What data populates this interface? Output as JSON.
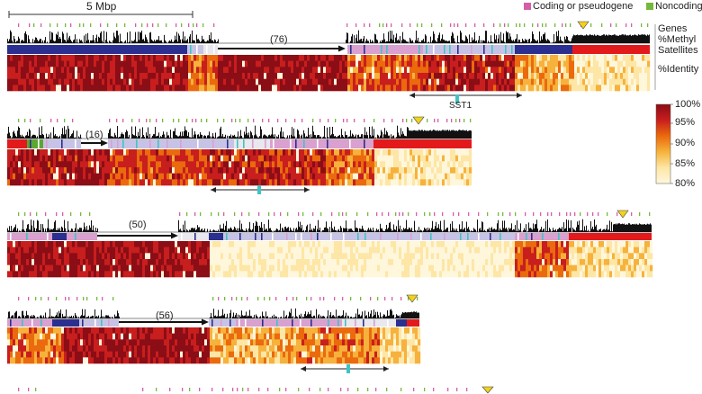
{
  "scale_bar": {
    "label": "5 Mbp"
  },
  "legend": [
    {
      "label": "Coding or pseudogene",
      "color": "#d45fa6"
    },
    {
      "label": "Noncoding",
      "color": "#76b83a"
    }
  ],
  "track_labels": {
    "genes": "Genes",
    "methyl": "%Methyl",
    "satellites": "Satellites",
    "identity": "%Identity"
  },
  "colorbar": {
    "ticks": [
      "100%",
      "95%",
      "90%",
      "85%",
      "80%"
    ],
    "colors": [
      "#8b0d16",
      "#c81e1e",
      "#ea6a0d",
      "#f6b23c",
      "#fde6a6",
      "#fff7dc"
    ]
  },
  "panels": [
    {
      "arrow_label": "(76)",
      "annotation_label": "SST1"
    },
    {
      "arrow_label": "(16)"
    },
    {
      "arrow_label": "(50)"
    },
    {
      "arrow_label": "(56)"
    }
  ],
  "colors": {
    "navy": "#2b2f8f",
    "lavender": "#c7c3e6",
    "pink": "#d9a0d0",
    "cyan": "#3fc4c4",
    "red": "#e31a1c",
    "gray": "#e8e8ee",
    "green": "#5aa832",
    "marker": "#f2d21b"
  }
}
